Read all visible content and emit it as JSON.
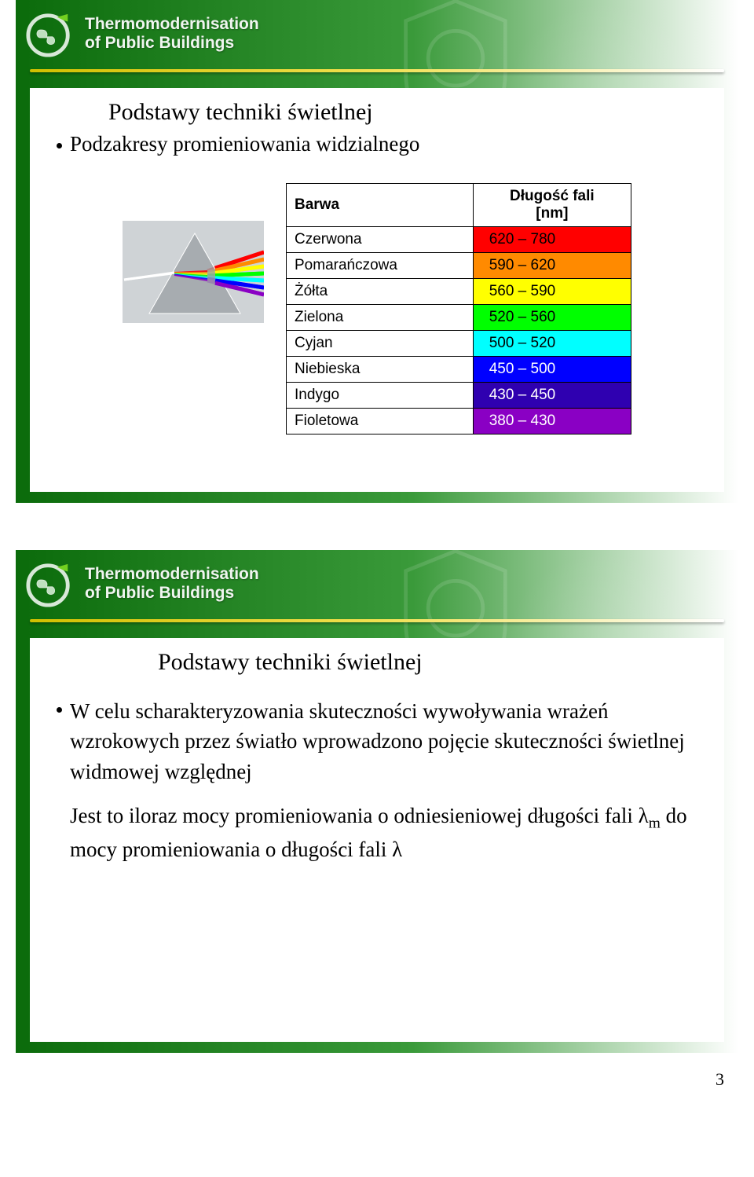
{
  "header": {
    "line1": "Thermomodernisation",
    "line2": "of Public Buildings"
  },
  "slide1": {
    "title": "Podstawy techniki świetlnej",
    "bullet": "Podzakresy promieniowania widzialnego",
    "table": {
      "header": {
        "c1": "Barwa",
        "c2": "Długość fali\n[nm]"
      },
      "rows": [
        {
          "label": "Czerwona",
          "value": "620 – 780",
          "bg": "#ff0000",
          "fg": "#000000"
        },
        {
          "label": "Pomarańczowa",
          "value": "590 – 620",
          "bg": "#ff8a00",
          "fg": "#000000"
        },
        {
          "label": "Żółta",
          "value": "560 – 590",
          "bg": "#ffff00",
          "fg": "#000000"
        },
        {
          "label": "Zielona",
          "value": "520 – 560",
          "bg": "#00ff00",
          "fg": "#000000"
        },
        {
          "label": "Cyjan",
          "value": "500 – 520",
          "bg": "#00ffff",
          "fg": "#000000"
        },
        {
          "label": "Niebieska",
          "value": "450 – 500",
          "bg": "#0000ff",
          "fg": "#ffffff"
        },
        {
          "label": "Indygo",
          "value": "430 – 450",
          "bg": "#2f00b0",
          "fg": "#ffffff"
        },
        {
          "label": "Fioletowa",
          "value": "380 – 430",
          "bg": "#8a00c4",
          "fg": "#ffffff"
        }
      ]
    },
    "prism": {
      "bg": "#cfd3d6",
      "triangle_fill": "#9da3a7",
      "triangle_hilite": "#ffffff",
      "incoming_ray": "#ffffff",
      "spectrum": [
        "#ff0000",
        "#ff8a00",
        "#ffff00",
        "#00ff00",
        "#00ffff",
        "#0000ff",
        "#8a00c4"
      ]
    }
  },
  "slide2": {
    "title": "Podstawy techniki świetlnej",
    "para1_a": "W celu scharakteryzowania skuteczności wywoływania wrażeń wzrokowych przez światło wprowadzono pojęcie skuteczności świetlnej widmowej względnej",
    "para2_a": "Jest to iloraz mocy promieniowania o odniesieniowej długości fali λ",
    "para2_sub": "m",
    "para2_b": " do mocy promieniowania o długości fali λ"
  },
  "page_number": "3",
  "colors": {
    "accent_bar": "#e0d040",
    "bg_dark": "#0b6b0b"
  }
}
